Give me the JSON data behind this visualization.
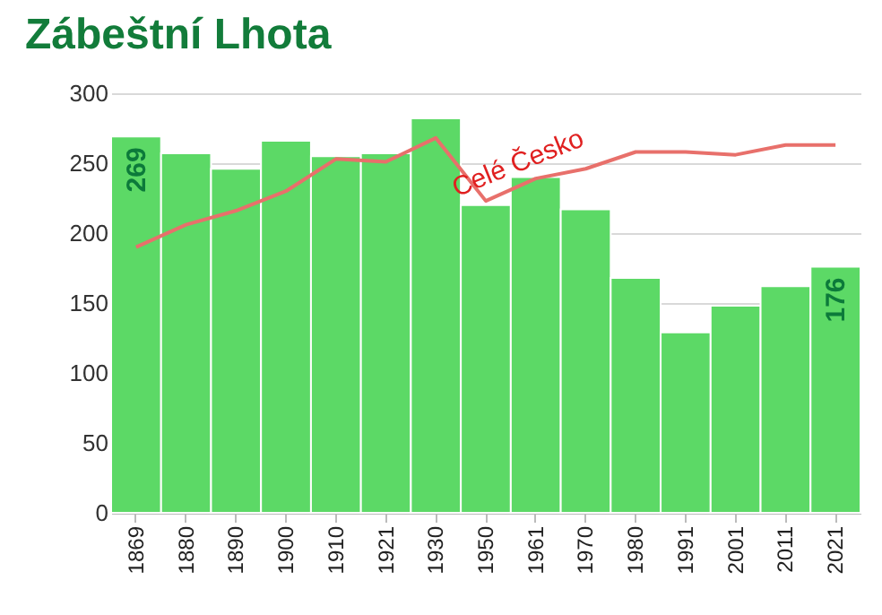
{
  "chart_data": {
    "type": "bar",
    "title": "Zábeštní Lhota",
    "categories": [
      "1869",
      "1880",
      "1890",
      "1900",
      "1910",
      "1921",
      "1930",
      "1950",
      "1961",
      "1970",
      "1980",
      "1991",
      "2001",
      "2011",
      "2021"
    ],
    "series": [
      {
        "color": "#5cd966",
        "values": [
          269,
          257,
          246,
          266,
          255,
          257,
          282,
          220,
          240,
          217,
          168,
          129,
          148,
          162,
          176
        ],
        "value_labels": [
          "269",
          null,
          null,
          null,
          null,
          null,
          null,
          null,
          null,
          null,
          null,
          null,
          null,
          null,
          "176"
        ]
      },
      {
        "type": "line",
        "name": "Celé Česko",
        "color": "#e8706b",
        "values": [
          190,
          206,
          216,
          230,
          253,
          251,
          268,
          223,
          239,
          246,
          258,
          258,
          256,
          263,
          263
        ]
      }
    ],
    "ylim": [
      0,
      300
    ],
    "yticks": [
      0,
      50,
      100,
      150,
      200,
      250,
      300
    ],
    "grid": "y",
    "marker": "none",
    "line_style": "solid"
  }
}
